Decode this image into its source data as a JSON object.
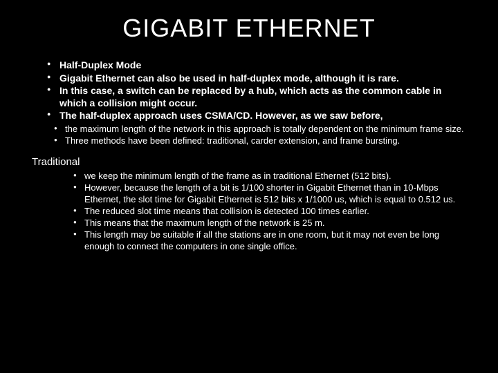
{
  "title": "GIGABIT ETHERNET",
  "main_bullets": [
    "Half-Duplex Mode",
    "Gigabit Ethernet can also be used in half-duplex mode, although it is rare.",
    "In this case, a switch can be replaced by a hub, which acts as the common cable in which a collision might occur.",
    "The half-duplex approach uses CSMA/CD. However, as we saw before,"
  ],
  "sub_bullets_1": [
    "the maximum length of the network in this approach is totally dependent on the minimum frame size.",
    "Three methods have been defined: traditional, carder extension, and frame bursting."
  ],
  "subhead": "Traditional",
  "sub_bullets_2": [
    "we keep the minimum length of the frame as in traditional Ethernet (512 bits).",
    "However, because the length of a bit is 1/100 shorter in Gigabit Ethernet than in 10-Mbps Ethernet, the slot time for Gigabit Ethernet is 512 bits x 1/1000 us, which is equal to 0.512 us.",
    "The reduced slot time means that collision is detected 100 times earlier.",
    "This means that the maximum length of the network is 25 m.",
    "This length may be suitable if all the stations are in one room, but it may not even be long enough to connect the computers in one single office."
  ]
}
